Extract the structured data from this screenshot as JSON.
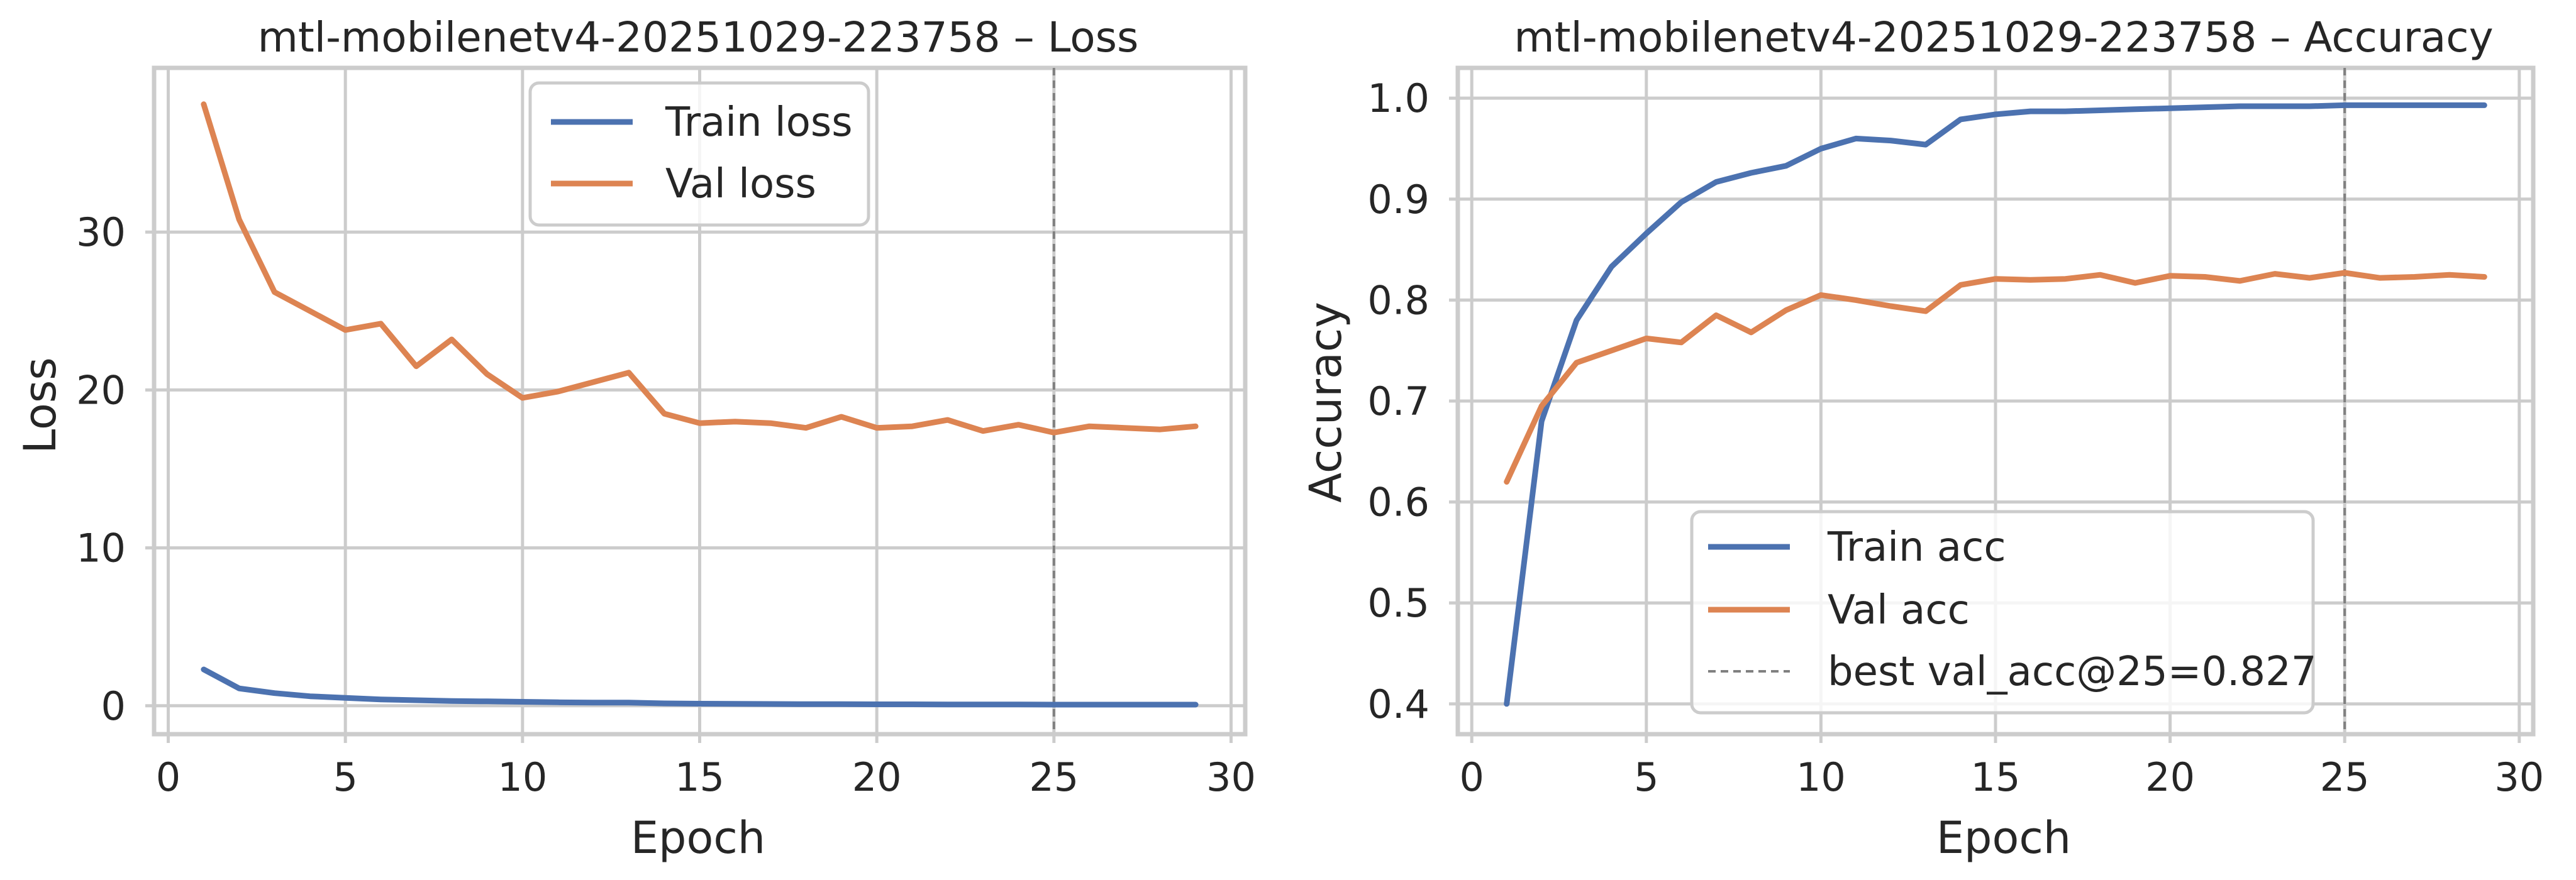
{
  "chart_data": [
    {
      "type": "line",
      "title": "mtl-mobilenetv4-20251029-223758 – Loss",
      "xlabel": "Epoch",
      "ylabel": "Loss",
      "xlim": [
        -0.4,
        30.4
      ],
      "ylim": [
        -1.8,
        40.4
      ],
      "xticks": [
        0,
        5,
        10,
        15,
        20,
        25,
        30
      ],
      "yticks": [
        0,
        10,
        20,
        30
      ],
      "grid": true,
      "legend_position": "top-center",
      "colors": {
        "train": "#4c72b0",
        "val": "#dd8452",
        "best_line": "#808080"
      },
      "x": [
        1,
        2,
        3,
        4,
        5,
        6,
        7,
        8,
        9,
        10,
        11,
        12,
        13,
        14,
        15,
        16,
        17,
        18,
        19,
        20,
        21,
        22,
        23,
        24,
        25,
        26,
        27,
        28,
        29
      ],
      "series": [
        {
          "name": "Train loss",
          "color": "#4c72b0",
          "values": [
            2.3,
            1.1,
            0.8,
            0.6,
            0.5,
            0.4,
            0.35,
            0.3,
            0.28,
            0.25,
            0.22,
            0.2,
            0.2,
            0.15,
            0.13,
            0.12,
            0.11,
            0.1,
            0.1,
            0.09,
            0.09,
            0.08,
            0.08,
            0.08,
            0.07,
            0.07,
            0.07,
            0.07,
            0.07
          ]
        },
        {
          "name": "Val loss",
          "color": "#dd8452",
          "values": [
            38.1,
            30.8,
            26.2,
            25.0,
            23.8,
            24.2,
            21.5,
            23.2,
            21.0,
            19.5,
            19.9,
            20.5,
            21.1,
            18.5,
            17.9,
            18.0,
            17.9,
            17.6,
            18.3,
            17.6,
            17.7,
            18.1,
            17.4,
            17.8,
            17.3,
            17.7,
            17.6,
            17.5,
            17.7
          ]
        }
      ],
      "best_epoch": 25
    },
    {
      "type": "line",
      "title": "mtl-mobilenetv4-20251029-223758 – Accuracy",
      "xlabel": "Epoch",
      "ylabel": "Accuracy",
      "xlim": [
        -0.4,
        30.4
      ],
      "ylim": [
        0.37,
        1.03
      ],
      "xticks": [
        0,
        5,
        10,
        15,
        20,
        25,
        30
      ],
      "yticks": [
        0.4,
        0.5,
        0.6,
        0.7,
        0.8,
        0.9,
        1.0
      ],
      "grid": true,
      "legend_position": "bottom-center",
      "x": [
        1,
        2,
        3,
        4,
        5,
        6,
        7,
        8,
        9,
        10,
        11,
        12,
        13,
        14,
        15,
        16,
        17,
        18,
        19,
        20,
        21,
        22,
        23,
        24,
        25,
        26,
        27,
        28,
        29
      ],
      "series": [
        {
          "name": "Train acc",
          "color": "#4c72b0",
          "values": [
            0.4,
            0.68,
            0.78,
            0.833,
            0.866,
            0.897,
            0.917,
            0.926,
            0.933,
            0.95,
            0.96,
            0.958,
            0.954,
            0.979,
            0.984,
            0.987,
            0.987,
            0.988,
            0.989,
            0.99,
            0.991,
            0.992,
            0.992,
            0.992,
            0.993,
            0.993,
            0.993,
            0.993,
            0.993
          ]
        },
        {
          "name": "Val acc",
          "color": "#dd8452",
          "values": [
            0.62,
            0.695,
            0.738,
            0.75,
            0.762,
            0.758,
            0.785,
            0.768,
            0.79,
            0.805,
            0.8,
            0.794,
            0.789,
            0.815,
            0.821,
            0.82,
            0.821,
            0.825,
            0.817,
            0.824,
            0.823,
            0.819,
            0.826,
            0.822,
            0.827,
            0.822,
            0.823,
            0.825,
            0.823
          ]
        }
      ],
      "best_line": {
        "label": "best val_acc@25=0.827",
        "x": 25,
        "color": "#808080"
      }
    }
  ]
}
